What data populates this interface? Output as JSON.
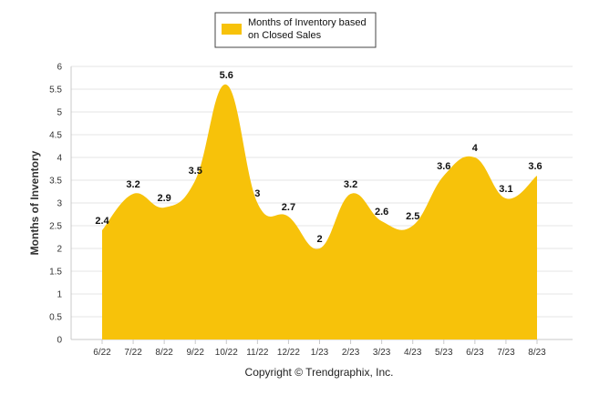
{
  "chart_data": {
    "type": "area",
    "categories": [
      "6/22",
      "7/22",
      "8/22",
      "9/22",
      "10/22",
      "11/22",
      "12/22",
      "1/23",
      "2/23",
      "3/23",
      "4/23",
      "5/23",
      "6/23",
      "7/23",
      "8/23"
    ],
    "series": [
      {
        "name": "Months of Inventory based on Closed Sales",
        "values": [
          2.4,
          3.2,
          2.9,
          3.5,
          5.6,
          3,
          2.7,
          2,
          3.2,
          2.6,
          2.5,
          3.6,
          4,
          3.1,
          3.6
        ]
      }
    ],
    "title": "",
    "xlabel": "",
    "ylabel": "Months of Inventory",
    "ylim": [
      0,
      6
    ],
    "yticks": [
      "0",
      "0.5",
      "1",
      "1.5",
      "2",
      "2.5",
      "3",
      "3.5",
      "4",
      "4.5",
      "5",
      "5.5",
      "6"
    ],
    "grid": true,
    "legend_position": "top-center",
    "legend_lines": [
      "Months of Inventory based",
      "on Closed Sales"
    ],
    "colors": {
      "fill": "#F7C20A",
      "grid": "#e6e6e6",
      "axis": "#c8c8c8"
    }
  },
  "credit": "Copyright © Trendgraphix, Inc."
}
